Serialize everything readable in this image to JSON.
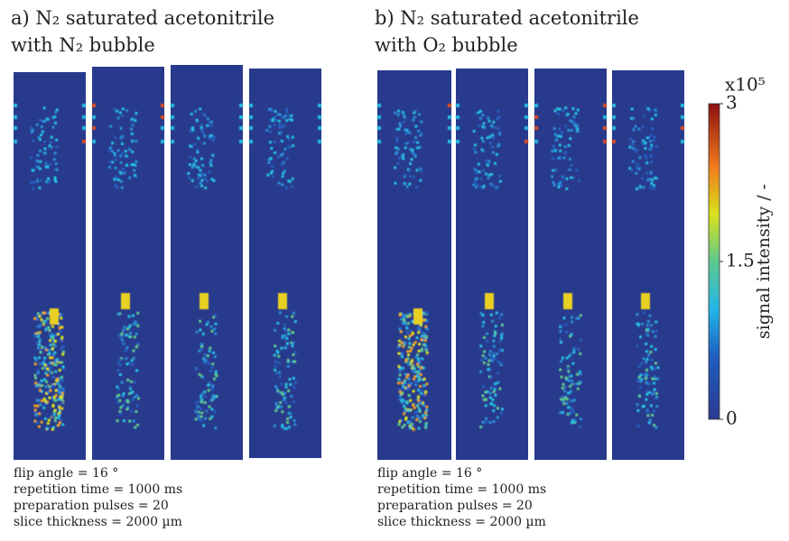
{
  "panels": [
    {
      "title_line1": "a) N₂ saturated acetonitrile",
      "title_line2": "with N₂ bubble",
      "parameters": [
        "flip angle = 16 °",
        "repetition time = 1000 ms",
        "preparation pulses = 20",
        "slice thickness = 2000 µm"
      ]
    },
    {
      "title_line1": "b) N₂ saturated acetonitrile",
      "title_line2": "with O₂ bubble",
      "parameters": [
        "flip angle = 16 °",
        "repetition time = 1000 ms",
        "preparation pulses = 20",
        "slice thickness = 2000 µm"
      ]
    }
  ],
  "colorbar": {
    "label": "signal intensity  /  -",
    "multiplier": "x10⁵",
    "lim": [
      0,
      3
    ],
    "ticks": [
      0,
      1.5,
      3
    ]
  }
}
